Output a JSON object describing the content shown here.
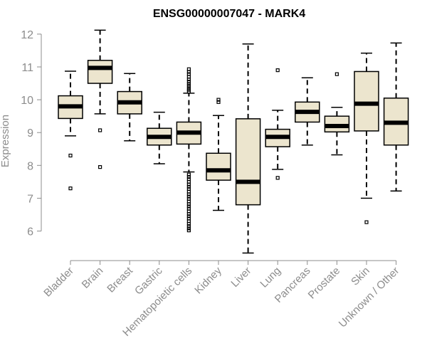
{
  "chart_data": {
    "type": "boxplot",
    "title": "ENSG00000007047 - MARK4",
    "xlabel": "",
    "ylabel": "Expression",
    "ylim": [
      5.3,
      12.2
    ],
    "yticks": [
      6,
      7,
      8,
      9,
      10,
      11,
      12
    ],
    "grid": false,
    "box_color": "#ece5ce",
    "categories": [
      "Bladder",
      "Brain",
      "Breast",
      "Gastric",
      "Hematopoietic cells",
      "Kidney",
      "Liver",
      "Lung",
      "Pancreas",
      "Prostate",
      "Skin",
      "Unknown / Other"
    ],
    "boxes": [
      {
        "min": 8.9,
        "q1": 9.43,
        "median": 9.8,
        "q3": 10.12,
        "max": 10.87,
        "outliers": [
          8.3,
          7.3
        ]
      },
      {
        "min": 9.57,
        "q1": 10.5,
        "median": 10.97,
        "q3": 11.2,
        "max": 12.12,
        "outliers": [
          9.07,
          7.95
        ]
      },
      {
        "min": 8.75,
        "q1": 9.57,
        "median": 9.92,
        "q3": 10.25,
        "max": 10.8,
        "outliers": []
      },
      {
        "min": 8.05,
        "q1": 8.62,
        "median": 8.87,
        "q3": 9.13,
        "max": 9.62,
        "outliers": []
      },
      {
        "min": 7.8,
        "q1": 8.65,
        "median": 9.0,
        "q3": 9.32,
        "max": 10.2,
        "outliers": [
          10.25,
          10.3,
          10.35,
          10.42,
          10.48,
          10.55,
          10.62,
          10.7,
          10.78,
          10.85,
          10.93,
          7.72,
          7.65,
          7.58,
          7.5,
          7.42,
          7.35,
          7.28,
          7.2,
          7.12,
          7.05,
          6.98,
          6.9,
          6.82,
          6.75,
          6.68,
          6.6,
          6.52,
          6.45,
          6.38,
          6.3,
          6.22,
          6.15,
          6.08,
          6.02
        ]
      },
      {
        "min": 6.63,
        "q1": 7.55,
        "median": 7.85,
        "q3": 8.37,
        "max": 9.52,
        "outliers": [
          9.93,
          10.0
        ]
      },
      {
        "min": 5.33,
        "q1": 6.8,
        "median": 7.5,
        "q3": 9.42,
        "max": 11.7,
        "outliers": []
      },
      {
        "min": 7.88,
        "q1": 8.57,
        "median": 8.87,
        "q3": 9.1,
        "max": 9.68,
        "outliers": [
          7.62,
          10.9
        ]
      },
      {
        "min": 8.62,
        "q1": 9.32,
        "median": 9.63,
        "q3": 9.93,
        "max": 10.67,
        "outliers": []
      },
      {
        "min": 8.32,
        "q1": 9.02,
        "median": 9.2,
        "q3": 9.5,
        "max": 9.77,
        "outliers": [
          10.78
        ]
      },
      {
        "min": 7.0,
        "q1": 9.05,
        "median": 9.88,
        "q3": 10.86,
        "max": 11.42,
        "outliers": [
          6.27
        ]
      },
      {
        "min": 7.22,
        "q1": 8.62,
        "median": 9.3,
        "q3": 10.05,
        "max": 11.73,
        "outliers": []
      }
    ]
  }
}
